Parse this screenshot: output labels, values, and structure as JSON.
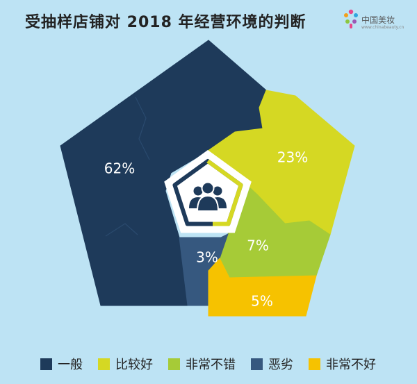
{
  "title": "受抽样店铺对 2018 年经营环境的判断",
  "logo": {
    "text": "中国美妆",
    "sub": "www.chinabeauty.cn"
  },
  "chart_data": {
    "type": "pie",
    "title": "受抽样店铺对 2018 年经营环境的判断",
    "categories": [
      "一般",
      "比较好",
      "非常不错",
      "恶劣",
      "非常不好"
    ],
    "values": [
      62,
      23,
      7,
      3,
      5
    ],
    "data_labels": [
      "62%",
      "23%",
      "7%",
      "3%",
      "5%"
    ],
    "colors": [
      "#1e3a5a",
      "#d5d823",
      "#a6cb37",
      "#36587f",
      "#f6c200"
    ],
    "legend_position": "bottom",
    "center_icon": "users-group-icon"
  }
}
